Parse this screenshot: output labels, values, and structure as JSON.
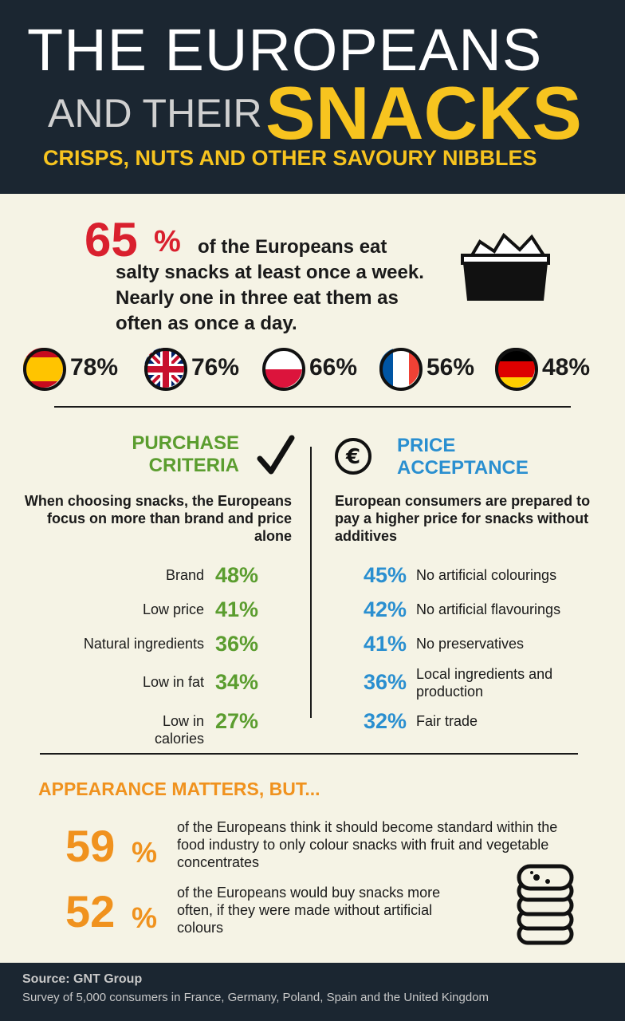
{
  "header": {
    "title_line1": "THE EUROPEANS",
    "title_line2a": "AND THEIR",
    "title_line2b": "SNACKS",
    "subtitle": "CRISPS, NUTS AND OTHER SAVOURY NIBBLES"
  },
  "intro": {
    "stat": "65",
    "unit": "%",
    "text": "of the Europeans eat salty snacks at least once a week. Nearly one in three eat them as often as once a day."
  },
  "countries": [
    "78%",
    "76%",
    "66%",
    "56%",
    "48%"
  ],
  "purchase": {
    "heading_line1": "PURCHASE",
    "heading_line2": "CRITERIA",
    "description": "When choosing snacks, the Europeans focus on more than brand and price alone",
    "items": [
      {
        "label": "Brand",
        "value": "48%"
      },
      {
        "label": "Low price",
        "value": "41%"
      },
      {
        "label": "Natural ingredients",
        "value": "36%"
      },
      {
        "label": "Low in fat",
        "value": "34%"
      },
      {
        "label": "Low in calories",
        "value": "27%"
      }
    ]
  },
  "price": {
    "heading_line1": "PRICE",
    "heading_line2": "ACCEPTANCE",
    "description": "European consumers are prepared to pay a higher price for snacks without additives",
    "items": [
      {
        "value": "45%",
        "label": "No artificial colourings"
      },
      {
        "value": "42%",
        "label": "No artificial flavourings"
      },
      {
        "value": "41%",
        "label": "No preservatives"
      },
      {
        "value": "36%",
        "label": "Local ingredients and production"
      },
      {
        "value": "32%",
        "label": "Fair trade"
      }
    ]
  },
  "appearance": {
    "heading": "APPEARANCE MATTERS, BUT...",
    "stats": [
      {
        "value": "59",
        "unit": "%",
        "text": "of the Europeans think it should become standard within the food industry to only colour snacks with fruit and vegetable concentrates"
      },
      {
        "value": "52",
        "unit": "%",
        "text": "of the Europeans would buy snacks more often, if they were made without artificial colours"
      }
    ]
  },
  "footer": {
    "source": "Source: GNT Group",
    "note": "Survey of 5,000 consumers in France, Germany, Poland, Spain and the United Kingdom"
  }
}
